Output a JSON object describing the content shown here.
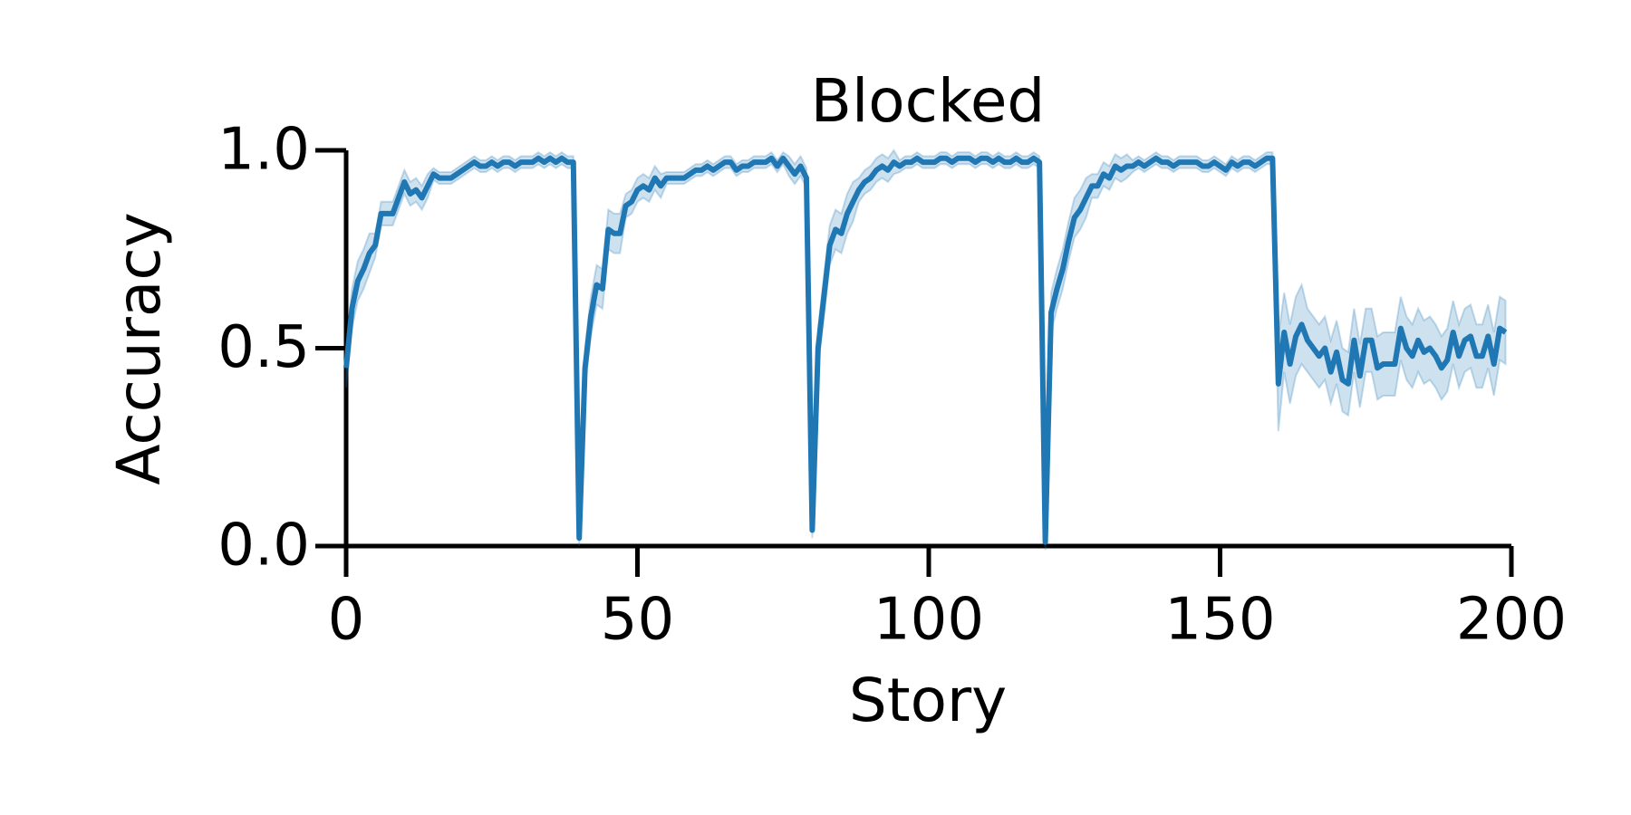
{
  "chart_data": {
    "type": "line",
    "title": "Blocked",
    "x_label": "Story",
    "y_label": "Accuracy",
    "xlim": [
      0,
      200
    ],
    "xticks": [
      0,
      50,
      100,
      150,
      200
    ],
    "ylim": [
      0,
      1
    ],
    "yticks": [
      {
        "value": 0,
        "label": "0.0"
      },
      {
        "value": 0.5,
        "label": "0.5"
      },
      {
        "value": 1,
        "label": "1.0"
      }
    ],
    "x": [
      0,
      1,
      2,
      3,
      4,
      5,
      6,
      7,
      8,
      9,
      10,
      11,
      12,
      13,
      14,
      15,
      16,
      17,
      18,
      19,
      20,
      21,
      22,
      23,
      24,
      25,
      26,
      27,
      28,
      29,
      30,
      31,
      32,
      33,
      34,
      35,
      36,
      37,
      38,
      39,
      40,
      41,
      42,
      43,
      44,
      45,
      46,
      47,
      48,
      49,
      50,
      51,
      52,
      53,
      54,
      55,
      56,
      57,
      58,
      59,
      60,
      61,
      62,
      63,
      64,
      65,
      66,
      67,
      68,
      69,
      70,
      71,
      72,
      73,
      74,
      75,
      76,
      77,
      78,
      79,
      80,
      81,
      82,
      83,
      84,
      85,
      86,
      87,
      88,
      89,
      90,
      91,
      92,
      93,
      94,
      95,
      96,
      97,
      98,
      99,
      100,
      101,
      102,
      103,
      104,
      105,
      106,
      107,
      108,
      109,
      110,
      111,
      112,
      113,
      114,
      115,
      116,
      117,
      118,
      119,
      120,
      121,
      122,
      123,
      124,
      125,
      126,
      127,
      128,
      129,
      130,
      131,
      132,
      133,
      134,
      135,
      136,
      137,
      138,
      139,
      140,
      141,
      142,
      143,
      144,
      145,
      146,
      147,
      148,
      149,
      150,
      151,
      152,
      153,
      154,
      155,
      156,
      157,
      158,
      159,
      160,
      161,
      162,
      163,
      164,
      165,
      166,
      167,
      168,
      169,
      170,
      171,
      172,
      173,
      174,
      175,
      176,
      177,
      178,
      179,
      180,
      181,
      182,
      183,
      184,
      185,
      186,
      187,
      188,
      189,
      190,
      191,
      192,
      193,
      194,
      195,
      196,
      197,
      198,
      199
    ],
    "series": [
      {
        "color": "#1f77b4",
        "values": [
          0.45,
          0.6,
          0.67,
          0.7,
          0.74,
          0.76,
          0.84,
          0.84,
          0.84,
          0.88,
          0.92,
          0.89,
          0.9,
          0.88,
          0.91,
          0.94,
          0.93,
          0.93,
          0.93,
          0.94,
          0.95,
          0.96,
          0.97,
          0.96,
          0.96,
          0.97,
          0.96,
          0.97,
          0.97,
          0.96,
          0.97,
          0.97,
          0.97,
          0.98,
          0.97,
          0.98,
          0.97,
          0.98,
          0.97,
          0.97,
          0.02,
          0.45,
          0.58,
          0.66,
          0.65,
          0.8,
          0.79,
          0.79,
          0.86,
          0.87,
          0.9,
          0.91,
          0.9,
          0.93,
          0.91,
          0.93,
          0.93,
          0.93,
          0.93,
          0.94,
          0.95,
          0.95,
          0.96,
          0.95,
          0.96,
          0.97,
          0.97,
          0.95,
          0.96,
          0.96,
          0.97,
          0.97,
          0.97,
          0.98,
          0.96,
          0.98,
          0.96,
          0.94,
          0.96,
          0.93,
          0.04,
          0.5,
          0.63,
          0.76,
          0.8,
          0.79,
          0.84,
          0.87,
          0.9,
          0.92,
          0.93,
          0.95,
          0.96,
          0.95,
          0.97,
          0.96,
          0.97,
          0.97,
          0.98,
          0.97,
          0.97,
          0.97,
          0.98,
          0.98,
          0.97,
          0.98,
          0.98,
          0.98,
          0.97,
          0.98,
          0.98,
          0.97,
          0.98,
          0.97,
          0.97,
          0.98,
          0.97,
          0.97,
          0.98,
          0.97,
          0.01,
          0.59,
          0.65,
          0.7,
          0.77,
          0.83,
          0.85,
          0.88,
          0.91,
          0.91,
          0.94,
          0.93,
          0.96,
          0.95,
          0.96,
          0.96,
          0.97,
          0.96,
          0.97,
          0.98,
          0.97,
          0.97,
          0.96,
          0.97,
          0.97,
          0.97,
          0.97,
          0.96,
          0.96,
          0.97,
          0.96,
          0.95,
          0.97,
          0.96,
          0.97,
          0.97,
          0.96,
          0.97,
          0.98,
          0.98,
          0.41,
          0.54,
          0.46,
          0.53,
          0.56,
          0.52,
          0.5,
          0.48,
          0.5,
          0.44,
          0.49,
          0.42,
          0.41,
          0.52,
          0.43,
          0.52,
          0.52,
          0.45,
          0.46,
          0.46,
          0.46,
          0.55,
          0.5,
          0.48,
          0.52,
          0.49,
          0.5,
          0.48,
          0.45,
          0.47,
          0.54,
          0.48,
          0.52,
          0.53,
          0.48,
          0.48,
          0.53,
          0.46,
          0.55,
          0.54
        ],
        "errors": [
          0.05,
          0.05,
          0.05,
          0.05,
          0.05,
          0.03,
          0.03,
          0.03,
          0.03,
          0.03,
          0.03,
          0.03,
          0.03,
          0.03,
          0.03,
          0.015,
          0.015,
          0.015,
          0.015,
          0.015,
          0.015,
          0.015,
          0.015,
          0.015,
          0.015,
          0.015,
          0.015,
          0.015,
          0.015,
          0.015,
          0.015,
          0.015,
          0.015,
          0.015,
          0.015,
          0.015,
          0.015,
          0.015,
          0.015,
          0.015,
          0.02,
          0.05,
          0.05,
          0.05,
          0.05,
          0.05,
          0.05,
          0.05,
          0.03,
          0.03,
          0.03,
          0.03,
          0.03,
          0.03,
          0.03,
          0.015,
          0.015,
          0.015,
          0.015,
          0.015,
          0.015,
          0.015,
          0.015,
          0.015,
          0.015,
          0.015,
          0.015,
          0.015,
          0.015,
          0.015,
          0.015,
          0.015,
          0.015,
          0.015,
          0.015,
          0.015,
          0.025,
          0.025,
          0.025,
          0.025,
          0.02,
          0.05,
          0.05,
          0.05,
          0.05,
          0.05,
          0.05,
          0.05,
          0.03,
          0.03,
          0.03,
          0.03,
          0.03,
          0.03,
          0.03,
          0.015,
          0.015,
          0.015,
          0.015,
          0.015,
          0.015,
          0.015,
          0.015,
          0.015,
          0.015,
          0.015,
          0.015,
          0.015,
          0.015,
          0.015,
          0.015,
          0.015,
          0.015,
          0.015,
          0.015,
          0.015,
          0.015,
          0.015,
          0.015,
          0.015,
          0.02,
          0.05,
          0.05,
          0.05,
          0.05,
          0.05,
          0.05,
          0.05,
          0.03,
          0.03,
          0.03,
          0.03,
          0.03,
          0.03,
          0.03,
          0.015,
          0.015,
          0.015,
          0.015,
          0.015,
          0.015,
          0.015,
          0.015,
          0.015,
          0.015,
          0.015,
          0.015,
          0.015,
          0.015,
          0.015,
          0.015,
          0.015,
          0.015,
          0.015,
          0.015,
          0.015,
          0.015,
          0.015,
          0.015,
          0.015,
          0.12,
          0.1,
          0.1,
          0.1,
          0.1,
          0.08,
          0.08,
          0.08,
          0.08,
          0.08,
          0.08,
          0.08,
          0.08,
          0.08,
          0.08,
          0.08,
          0.08,
          0.08,
          0.08,
          0.08,
          0.08,
          0.08,
          0.08,
          0.08,
          0.08,
          0.08,
          0.08,
          0.08,
          0.08,
          0.08,
          0.08,
          0.08,
          0.08,
          0.08,
          0.08,
          0.08,
          0.08,
          0.08,
          0.08,
          0.08
        ]
      }
    ]
  }
}
